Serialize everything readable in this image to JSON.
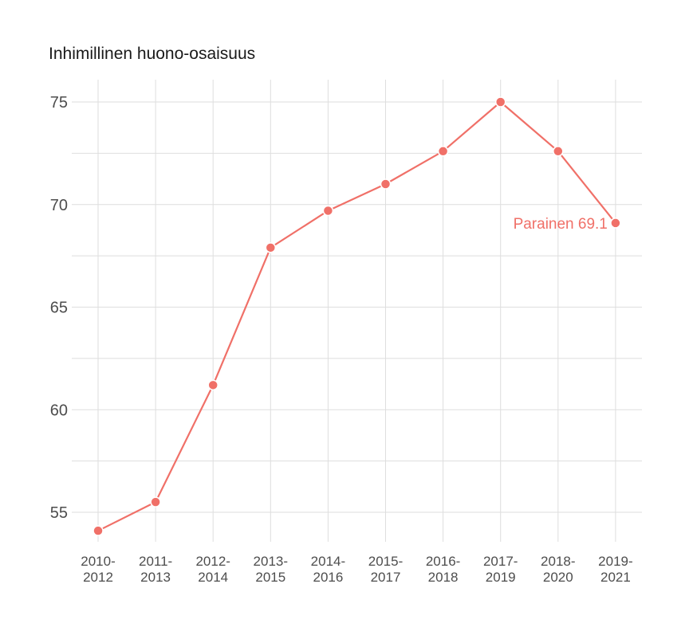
{
  "chart_data": {
    "type": "line",
    "title": "Inhimillinen huono-osaisuus",
    "xlabel": "",
    "ylabel": "",
    "categories": [
      [
        "2010-",
        "2012"
      ],
      [
        "2011-",
        "2013"
      ],
      [
        "2012-",
        "2014"
      ],
      [
        "2013-",
        "2015"
      ],
      [
        "2014-",
        "2016"
      ],
      [
        "2015-",
        "2017"
      ],
      [
        "2016-",
        "2018"
      ],
      [
        "2017-",
        "2019"
      ],
      [
        "2018-",
        "2020"
      ],
      [
        "2019-",
        "2021"
      ]
    ],
    "series": [
      {
        "name": "Parainen",
        "values": [
          54.1,
          55.5,
          61.2,
          67.9,
          69.7,
          71.0,
          72.6,
          75.0,
          72.6,
          69.1
        ]
      }
    ],
    "end_label": "Parainen 69.1",
    "yticks": [
      55,
      60,
      65,
      70,
      75
    ],
    "ylim": [
      53.0,
      76.0
    ],
    "grid": true,
    "colors": {
      "series": "#f07068",
      "grid": "#dedede",
      "tick_text": "#4d4d4d"
    }
  }
}
